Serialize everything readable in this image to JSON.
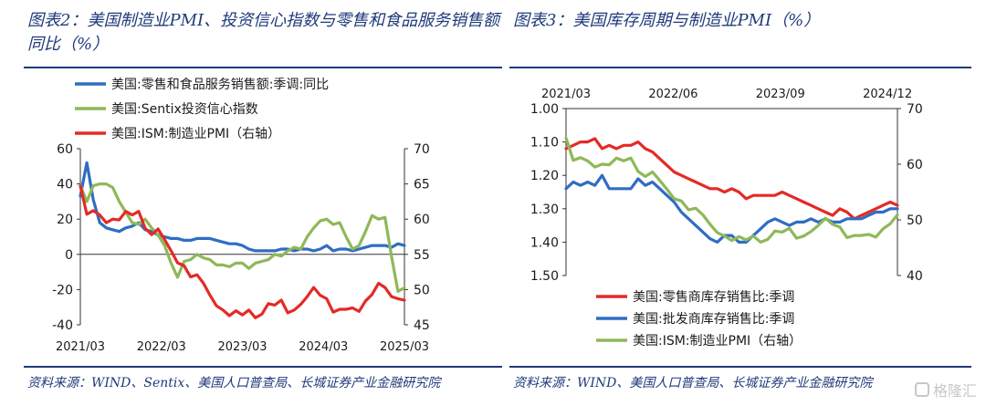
{
  "titles": {
    "left": "图表2：美国制造业PMI、投资信心指数与零售和食品服务销售额同比（%）",
    "right": "图表3：美国库存周期与制造业PMI（%）"
  },
  "sources": {
    "left": "资料来源：WIND、Sentix、美国人口普查局、长城证券产业金融研究院",
    "right": "资料来源：WIND、美国人口普查局、长城证券产业金融研究院"
  },
  "watermark": "格隆汇",
  "colors": {
    "blue": "#2f6dc2",
    "green": "#8fb858",
    "red": "#e42a26",
    "accent": "#1f3a7a"
  },
  "chart_data": [
    {
      "type": "line",
      "title": "",
      "x_labels": [
        "2021/03",
        "2022/03",
        "2023/03",
        "2024/03",
        "2025/03"
      ],
      "x_range": [
        0,
        50
      ],
      "left_axis": {
        "ticks": [
          "60",
          "40",
          "20",
          "0",
          "-20",
          "-40"
        ],
        "range": [
          -40,
          60
        ]
      },
      "right_axis": {
        "ticks": [
          "70",
          "65",
          "60",
          "55",
          "50",
          "45"
        ],
        "range": [
          45,
          70
        ]
      },
      "legend_position": "top",
      "series": [
        {
          "name": "美国:零售和食品服务销售额:季调:同比",
          "color": "blue",
          "axis": "left",
          "values": [
            33,
            52,
            31,
            18,
            15,
            14,
            13,
            15,
            16,
            18,
            14,
            13,
            11,
            10,
            9,
            9,
            8,
            8,
            9,
            9,
            9,
            8,
            7,
            6,
            6,
            5,
            3,
            2,
            2,
            2,
            2,
            3,
            3,
            2,
            3,
            3,
            2,
            3,
            5,
            2,
            3,
            3,
            2,
            3,
            4,
            5,
            5,
            5,
            4,
            6,
            5
          ]
        },
        {
          "name": "美国:Sentix投资信心指数",
          "color": "green",
          "axis": "left",
          "values": [
            39,
            30,
            39,
            40,
            40,
            38,
            30,
            24,
            18,
            17,
            20,
            15,
            11,
            5,
            -5,
            -13,
            -4,
            -3,
            0,
            -2,
            -3,
            -6,
            -6,
            -7,
            -5,
            -5,
            -8,
            -5,
            -4,
            -3,
            0,
            -1,
            2,
            4,
            3,
            10,
            15,
            19,
            20,
            17,
            18,
            10,
            3,
            5,
            13,
            22,
            20,
            21,
            -1,
            -21,
            -19
          ]
        },
        {
          "name": "美国:ISM:制造业PMI（右轴）",
          "color": "red",
          "axis": "right",
          "values": [
            64.7,
            60.7,
            61.2,
            60.6,
            59.5,
            60.0,
            59.9,
            61.1,
            60.6,
            61.1,
            58.7,
            57.8,
            58.6,
            57.1,
            55.5,
            53.8,
            53.4,
            51.8,
            52.1,
            50.9,
            49.2,
            47.7,
            47.1,
            46.3,
            47.0,
            46.4,
            47.1,
            46.0,
            46.5,
            48.0,
            47.8,
            48.5,
            46.7,
            47.1,
            47.9,
            49.0,
            50.3,
            49.2,
            48.7,
            46.8,
            47.2,
            47.2,
            47.4,
            46.9,
            48.4,
            49.3,
            50.9,
            50.3,
            49.0,
            48.7,
            48.5
          ]
        }
      ]
    },
    {
      "type": "line",
      "title": "",
      "x_labels": [
        "2021/03",
        "2022/06",
        "2023/09",
        "2024/12"
      ],
      "x_range": [
        0,
        46
      ],
      "left_axis": {
        "ticks": [
          "1.00",
          "1.10",
          "1.20",
          "1.30",
          "1.40",
          "1.50"
        ],
        "range": [
          1.0,
          1.5
        ],
        "inverted": true
      },
      "right_axis": {
        "ticks": [
          "70",
          "60",
          "50",
          "40"
        ],
        "range": [
          40,
          70
        ]
      },
      "legend_position": "bottom",
      "series": [
        {
          "name": "美国:零售商库存销售比:季调",
          "color": "red",
          "axis": "left",
          "values": [
            1.12,
            1.11,
            1.1,
            1.1,
            1.09,
            1.12,
            1.11,
            1.12,
            1.11,
            1.11,
            1.1,
            1.12,
            1.13,
            1.15,
            1.17,
            1.19,
            1.2,
            1.21,
            1.22,
            1.23,
            1.24,
            1.24,
            1.25,
            1.24,
            1.25,
            1.27,
            1.26,
            1.26,
            1.26,
            1.26,
            1.25,
            1.26,
            1.27,
            1.28,
            1.29,
            1.3,
            1.31,
            1.32,
            1.3,
            1.31,
            1.33,
            1.32,
            1.31,
            1.3,
            1.29,
            1.28,
            1.29
          ]
        },
        {
          "name": "美国:批发商库存销售比:季调",
          "color": "blue",
          "axis": "left",
          "values": [
            1.24,
            1.22,
            1.23,
            1.22,
            1.23,
            1.2,
            1.24,
            1.24,
            1.24,
            1.24,
            1.21,
            1.23,
            1.22,
            1.24,
            1.26,
            1.28,
            1.31,
            1.33,
            1.35,
            1.37,
            1.39,
            1.4,
            1.38,
            1.38,
            1.4,
            1.4,
            1.38,
            1.36,
            1.34,
            1.33,
            1.34,
            1.35,
            1.34,
            1.34,
            1.33,
            1.34,
            1.33,
            1.34,
            1.34,
            1.33,
            1.33,
            1.33,
            1.32,
            1.31,
            1.31,
            1.3,
            1.3
          ]
        },
        {
          "name": "美国:ISM:制造业PMI（右轴）",
          "color": "green",
          "axis": "right",
          "values": [
            64.7,
            60.7,
            61.2,
            60.6,
            59.5,
            60.0,
            59.9,
            61.1,
            60.6,
            61.1,
            58.7,
            57.8,
            58.6,
            57.1,
            55.5,
            53.8,
            53.4,
            51.8,
            52.1,
            50.9,
            49.2,
            47.7,
            47.1,
            46.3,
            47.0,
            46.4,
            47.1,
            46.0,
            46.5,
            48.0,
            47.8,
            48.5,
            46.7,
            47.1,
            47.9,
            49.0,
            50.3,
            49.2,
            48.7,
            46.8,
            47.2,
            47.2,
            47.4,
            46.9,
            48.4,
            49.3,
            50.9
          ]
        }
      ]
    }
  ]
}
